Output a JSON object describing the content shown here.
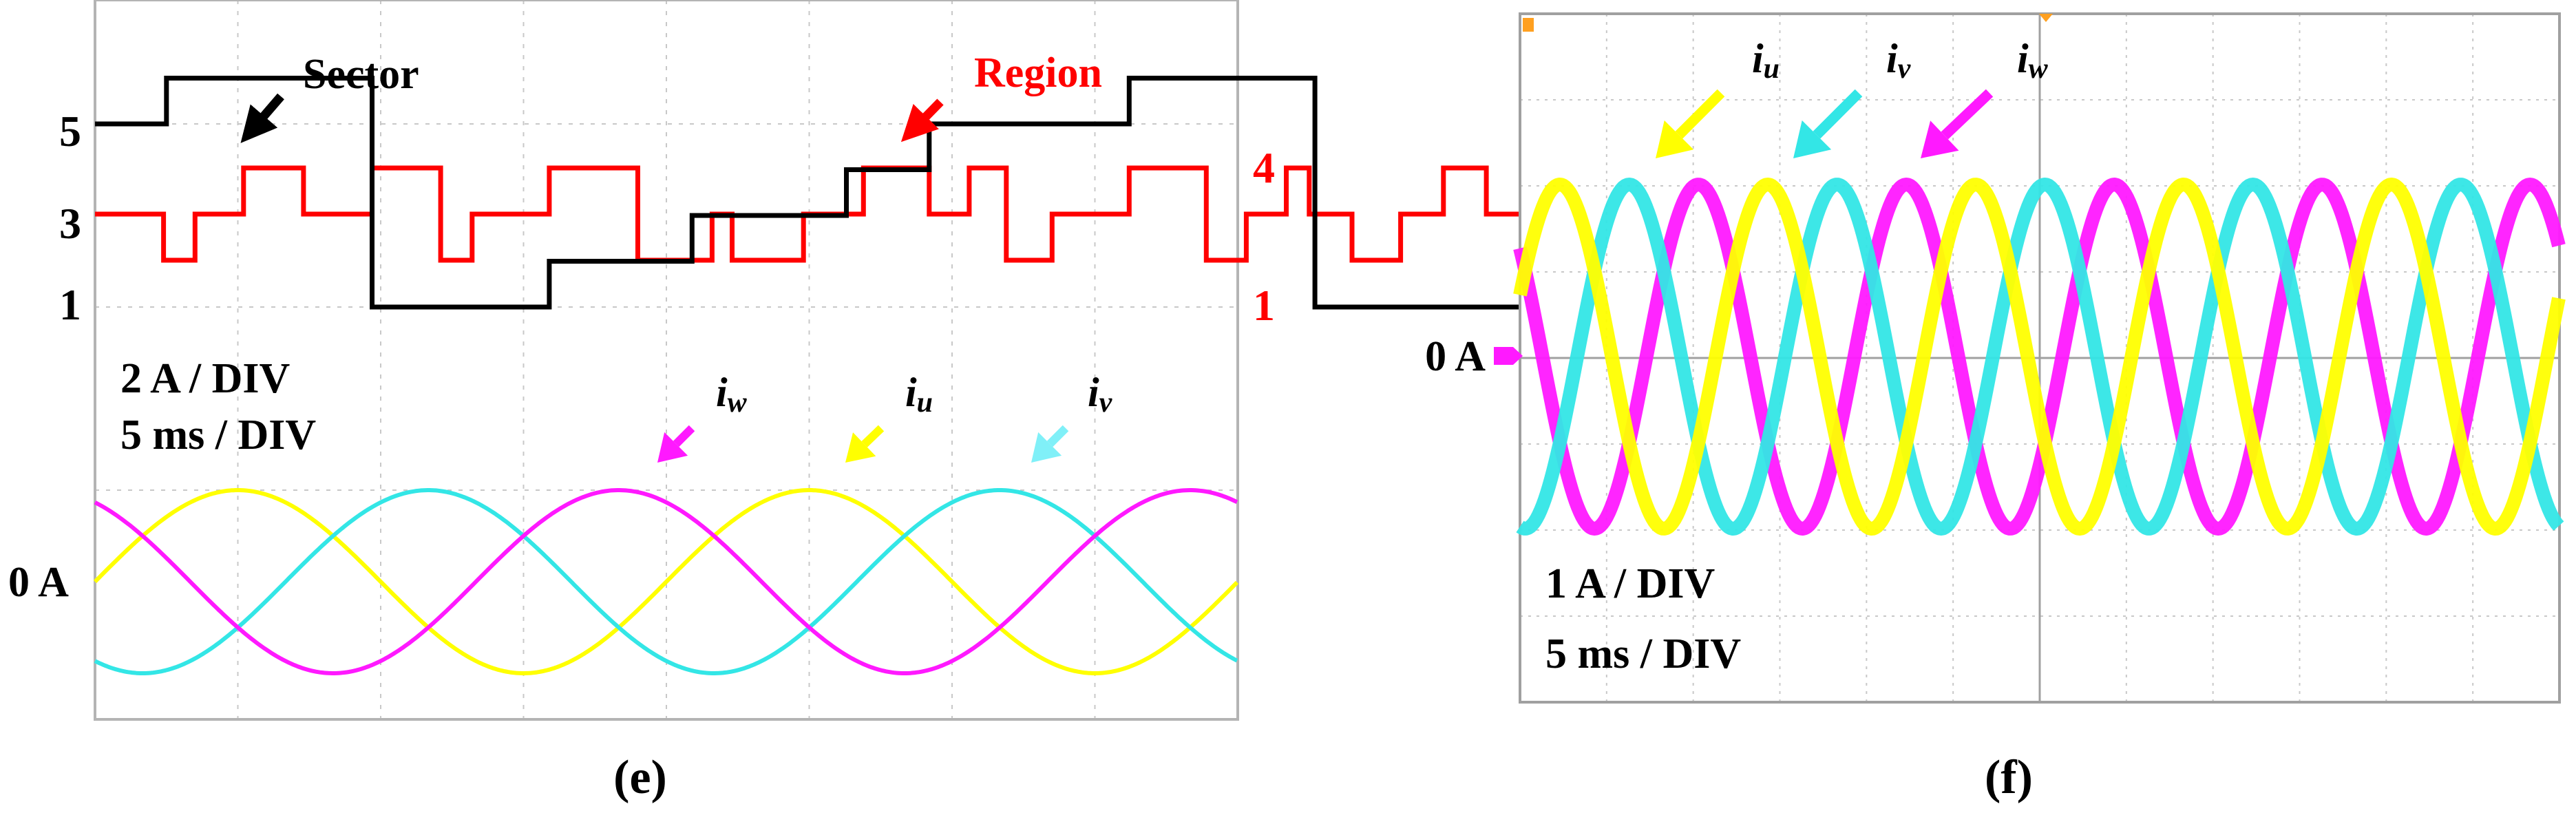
{
  "colors": {
    "u": "#FFFF00",
    "v": "#33E6E6",
    "w": "#FF19FF",
    "sector": "#000000",
    "region": "#FF0000",
    "grid": "#C8C8C8",
    "arrow_v_panel_e": "#80F0F8"
  },
  "panel_e": {
    "caption": "(e)",
    "caption_letter": "e",
    "sector_label": "Sector",
    "region_label": "Region",
    "left_ticks": [
      "5",
      "3",
      "1"
    ],
    "right_ticks": [
      "4",
      "1"
    ],
    "scale_current": "2 A / DIV",
    "scale_time": "5 ms / DIV",
    "zero_label": "0 A",
    "current_labels": [
      {
        "main": "i",
        "sub": "w",
        "phase": "w"
      },
      {
        "main": "i",
        "sub": "u",
        "phase": "u"
      },
      {
        "main": "i",
        "sub": "v",
        "phase": "v"
      }
    ]
  },
  "panel_f": {
    "caption": "(f)",
    "caption_letter": "f",
    "zero_label": "0 A",
    "scale_current": "1 A / DIV",
    "scale_time": "5 ms / DIV",
    "current_labels": [
      {
        "main": "i",
        "sub": "u",
        "phase": "u"
      },
      {
        "main": "i",
        "sub": "v",
        "phase": "v"
      },
      {
        "main": "i",
        "sub": "w",
        "phase": "w"
      }
    ]
  },
  "chart_data": [
    {
      "type": "line",
      "panel": "e",
      "title": "",
      "xlabel": "",
      "ylabel": "",
      "x_unit": "ms",
      "x_per_div": 5,
      "divisions_x": 8,
      "grid": true,
      "series": [
        {
          "name": "Sector",
          "step": true,
          "x": [
            0,
            2.5,
            9.7,
            15.9,
            20.9,
            26.3,
            29.2,
            36.2,
            42.7,
            50.3,
            53.9,
            58.6,
            64.5,
            67.5,
            72.5
          ],
          "values": [
            5,
            6,
            1,
            2,
            3,
            4,
            5,
            6,
            1,
            2,
            3,
            4,
            5,
            6,
            6
          ]
        },
        {
          "name": "Region",
          "step": true,
          "x": [
            0,
            2.4,
            3.5,
            5.2,
            7.3,
            9.7,
            12.1,
            13.2,
            15.9,
            19.0,
            21.6,
            22.3,
            24.8,
            26.9,
            29.2,
            30.6,
            31.9,
            33.5,
            36.2,
            38.9,
            40.3,
            41.7,
            42.5,
            44.0,
            45.7,
            47.2,
            48.7,
            50.3,
            52.2,
            53.9,
            55.0,
            56.5,
            58.6,
            60.4,
            61.9,
            64.0,
            65.6,
            67.5,
            68.3,
            70.2,
            72.5
          ],
          "values": [
            3,
            2,
            3,
            4,
            3,
            4,
            2,
            3,
            4,
            2,
            3,
            2,
            3,
            4,
            3,
            4,
            2,
            3,
            4,
            2,
            3,
            4,
            3,
            2,
            3,
            4,
            3,
            2,
            3,
            2,
            3,
            4,
            3,
            2,
            3,
            4,
            3,
            4,
            3,
            2,
            2
          ]
        },
        {
          "name": "iu",
          "shape": "sine",
          "amplitude_div": 1,
          "period_ms": 20,
          "phase_deg": 0,
          "peak_times_ms": [
            5,
            25,
            45
          ]
        },
        {
          "name": "iv",
          "shape": "sine",
          "amplitude_div": 1,
          "period_ms": 20,
          "phase_deg": -120,
          "peak_times_ms": [
            11.7,
            31.7,
            51.7
          ]
        },
        {
          "name": "iw",
          "shape": "sine",
          "amplitude_div": 1,
          "period_ms": 20,
          "phase_deg": 120,
          "peak_times_ms": [
            18.3,
            38.3,
            58.3
          ]
        }
      ]
    },
    {
      "type": "line",
      "panel": "f",
      "title": "",
      "xlabel": "",
      "ylabel": "",
      "x_unit": "ms",
      "x_per_div": 5,
      "divisions_x": 12,
      "divisions_y": 8,
      "grid": true,
      "series": [
        {
          "name": "iu",
          "shape": "sine",
          "amplitude_div": 1,
          "period_ms": 12,
          "phase_deg": 0,
          "peak_times_ms": [
            2.3,
            14.3,
            26.3,
            38.3
          ]
        },
        {
          "name": "iv",
          "shape": "sine",
          "amplitude_div": 1,
          "period_ms": 12,
          "phase_deg": -120,
          "peak_times_ms": [
            6.3,
            18.3,
            30.3,
            42.3
          ]
        },
        {
          "name": "iw",
          "shape": "sine",
          "amplitude_div": 1,
          "period_ms": 12,
          "phase_deg": 120,
          "peak_times_ms": [
            10.3,
            22.3,
            34.3,
            46.3
          ]
        }
      ]
    }
  ]
}
